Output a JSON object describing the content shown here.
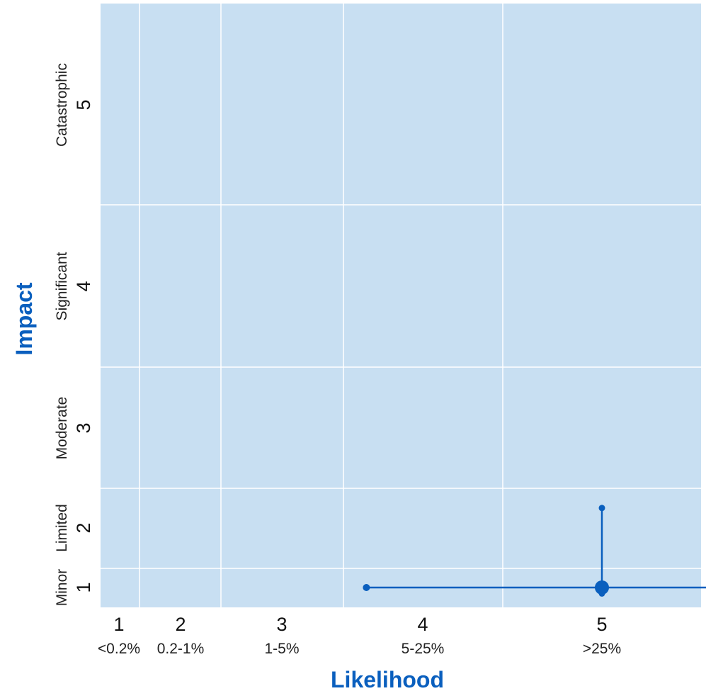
{
  "colors": {
    "plot_bg": "#c8dff2",
    "grid": "#ffffff",
    "marker": "#0a5fbe",
    "axis_title": "#0a5fbe"
  },
  "chart_data": {
    "type": "scatter",
    "title": "",
    "xlabel": "Likelihood",
    "ylabel": "Impact",
    "grid": true,
    "x_levels": [
      {
        "num": "1",
        "desc": "<0.2%"
      },
      {
        "num": "2",
        "desc": "0.2-1%"
      },
      {
        "num": "3",
        "desc": "1-5%"
      },
      {
        "num": "4",
        "desc": "5-25%"
      },
      {
        "num": "5",
        "desc": ">25%"
      }
    ],
    "y_levels": [
      {
        "num": "1",
        "desc": "Minor"
      },
      {
        "num": "2",
        "desc": "Limited"
      },
      {
        "num": "3",
        "desc": "Moderate"
      },
      {
        "num": "4",
        "desc": "Significant"
      },
      {
        "num": "5",
        "desc": "Catastrophic"
      }
    ],
    "point": {
      "x": 5,
      "y": 1,
      "x_range": [
        3.6,
        5.6
      ],
      "y_range": [
        0.9,
        2.2
      ]
    }
  }
}
